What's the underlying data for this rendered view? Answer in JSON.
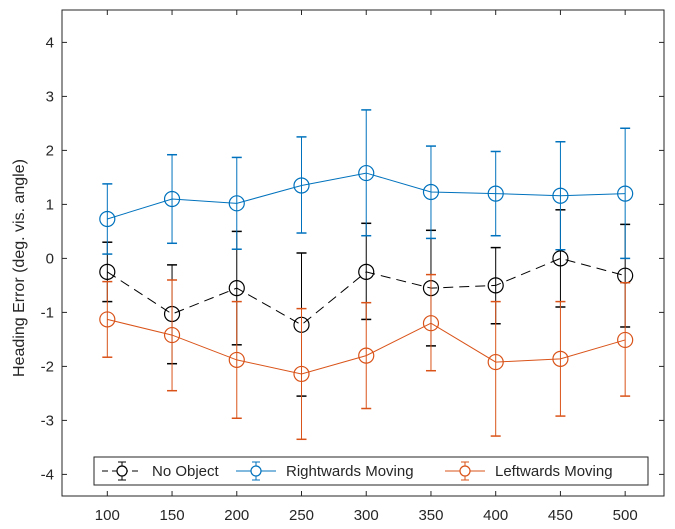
{
  "chart_data": {
    "type": "line",
    "ylabel": "Heading Error (deg. vis. angle)",
    "xlabel": "",
    "x": [
      100,
      150,
      200,
      250,
      300,
      350,
      400,
      450,
      500
    ],
    "x_ticks": [
      "100",
      "150",
      "200",
      "250",
      "300",
      "350",
      "400",
      "450",
      "500"
    ],
    "xlim": [
      65,
      530
    ],
    "ylim": [
      -4.4,
      4.6
    ],
    "y_ticks": [
      "4",
      "3",
      "2",
      "1",
      "0",
      "-1",
      "-2",
      "-3",
      "-4"
    ],
    "y_tick_values": [
      4,
      3,
      2,
      1,
      0,
      -1,
      -2,
      -3,
      -4
    ],
    "grid": false,
    "legend_position": "bottom",
    "series": [
      {
        "name": "No Object",
        "color": "#000000",
        "line_style": "dashed",
        "marker": "circle-open",
        "values": [
          -0.25,
          -1.03,
          -0.55,
          -1.23,
          -0.25,
          -0.55,
          -0.5,
          0.0,
          -0.32
        ],
        "err_upper": [
          0.3,
          -0.12,
          0.5,
          0.1,
          0.65,
          0.52,
          0.2,
          0.9,
          0.63
        ],
        "err_lower": [
          -0.8,
          -1.95,
          -1.6,
          -2.55,
          -1.13,
          -1.62,
          -1.21,
          -0.9,
          -1.27
        ]
      },
      {
        "name": "Rightwards Moving",
        "color": "#0072BD",
        "line_style": "solid",
        "marker": "circle-open",
        "values": [
          0.73,
          1.1,
          1.02,
          1.35,
          1.58,
          1.23,
          1.2,
          1.16,
          1.2
        ],
        "err_upper": [
          1.38,
          1.92,
          1.87,
          2.25,
          2.75,
          2.08,
          1.98,
          2.16,
          2.41
        ],
        "err_lower": [
          0.08,
          0.28,
          0.17,
          0.47,
          0.42,
          0.37,
          0.42,
          0.16,
          0.0
        ]
      },
      {
        "name": "Leftwards Moving",
        "color": "#D95319",
        "line_style": "solid",
        "marker": "circle-open",
        "values": [
          -1.13,
          -1.42,
          -1.88,
          -2.14,
          -1.8,
          -1.2,
          -1.92,
          -1.86,
          -1.51
        ],
        "err_upper": [
          -0.43,
          -0.4,
          -0.8,
          -0.93,
          -0.82,
          -0.3,
          -0.8,
          -0.8,
          -0.45
        ],
        "err_lower": [
          -1.83,
          -2.45,
          -2.96,
          -3.35,
          -2.78,
          -2.08,
          -3.29,
          -2.92,
          -2.55
        ]
      }
    ]
  }
}
